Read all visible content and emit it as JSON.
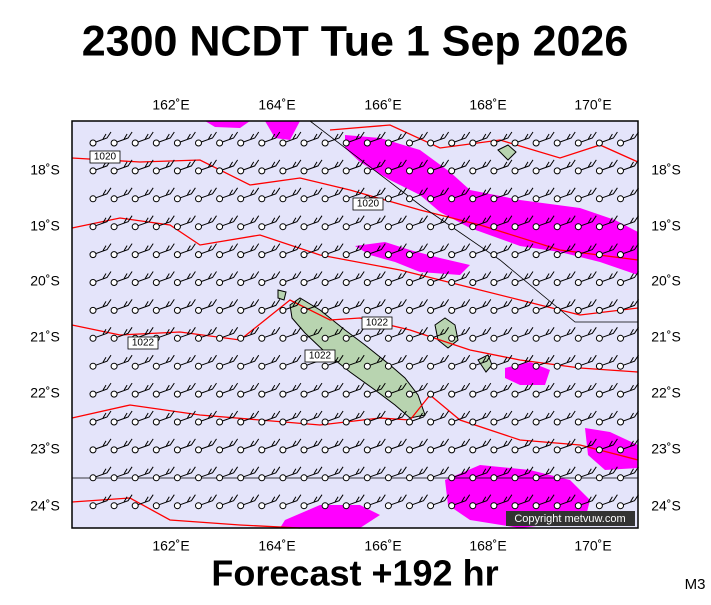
{
  "header": {
    "title": "2300 NCDT Tue 1 Sep 2026"
  },
  "axes": {
    "x_labels": [
      "162˚E",
      "164˚E",
      "166˚E",
      "168˚E",
      "170˚E"
    ],
    "y_labels": [
      "18˚S",
      "19˚S",
      "20˚S",
      "21˚S",
      "22˚S",
      "23˚S",
      "24˚S"
    ]
  },
  "isobar_labels": [
    "1020",
    "1020",
    "1022",
    "1022",
    "1022"
  ],
  "copyright": "Copyright metvuw.com",
  "footer": {
    "forecast": "Forecast +192 hr",
    "model": "M3"
  }
}
